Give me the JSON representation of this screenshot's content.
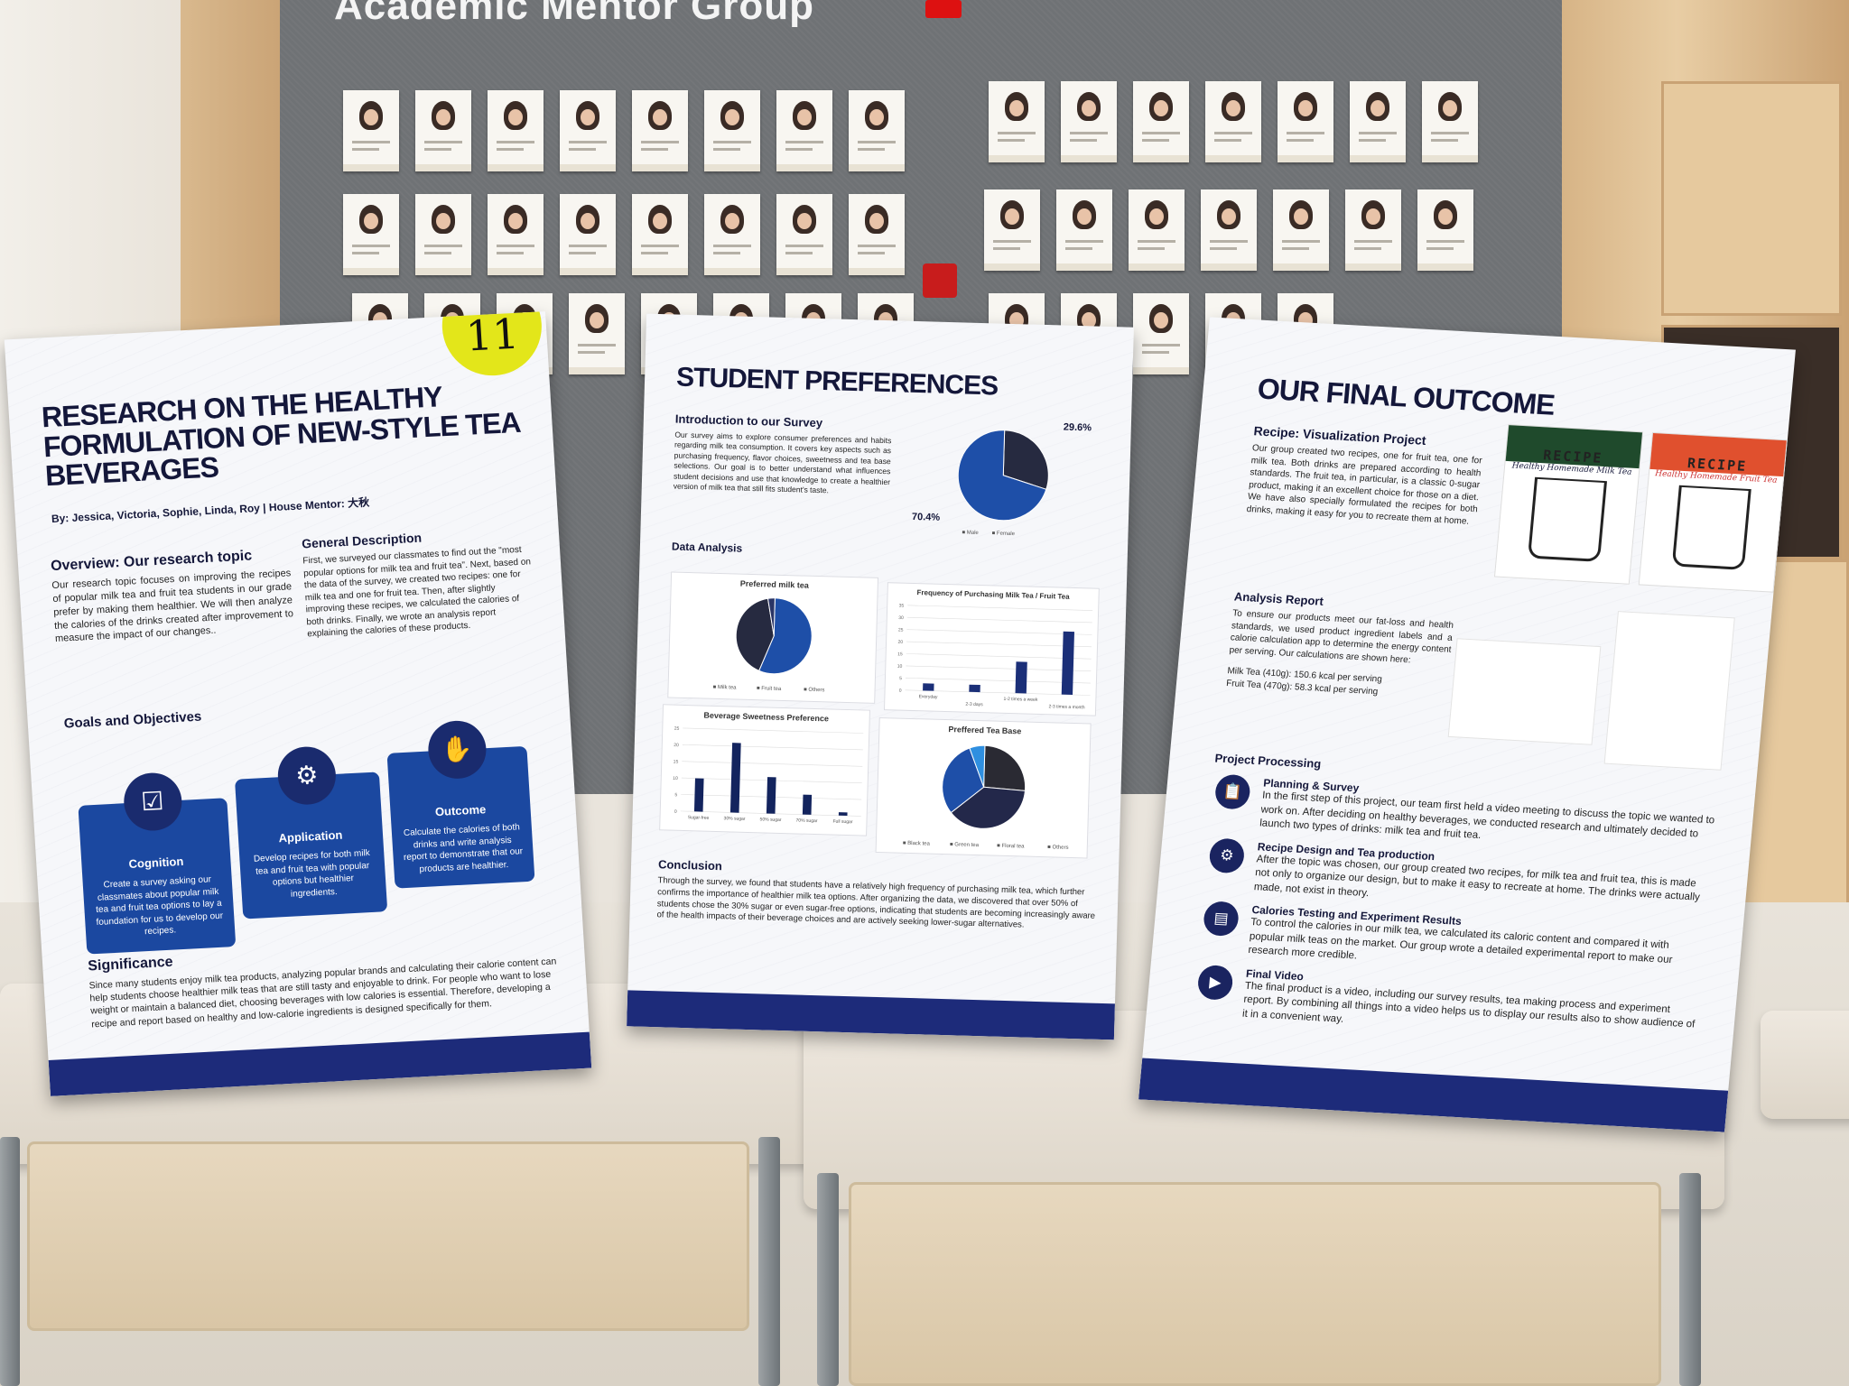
{
  "background": {
    "board_title": "Academic Mentor Group",
    "number_sticker": "11"
  },
  "poster_left": {
    "title": "RESEARCH ON THE HEALTHY FORMULATION OF NEW-STYLE TEA BEVERAGES",
    "byline": "By: Jessica, Victoria, Sophie, Linda, Roy | House Mentor: 大秋",
    "overview_heading": "Overview: Our research topic",
    "overview_text": "Our research topic focuses on improving the recipes of popular milk tea and fruit tea students in our grade prefer by making them healthier. We will then analyze the calories of the drinks created after improvement to measure the impact of our changes..",
    "general_heading": "General Description",
    "general_text": "First, we surveyed our classmates to find out the \"most popular options for milk tea and fruit tea\". Next, based on the data of the survey, we created two recipes: one for milk tea and one for fruit tea. Then, after slightly improving these recipes, we calculated the calories of both drinks. Finally, we wrote an analysis report explaining the calories of these products.",
    "goals_heading": "Goals and Objectives",
    "goals": [
      {
        "icon": "survey-checklist-icon",
        "title": "Cognition",
        "text": "Create a survey asking our classmates about popular milk tea and fruit tea options to lay a foundation for us to develop our recipes."
      },
      {
        "icon": "presentation-icon",
        "title": "Application",
        "text": "Develop recipes for both milk tea and fruit tea with popular options but healthier ingredients."
      },
      {
        "icon": "hand-chart-icon",
        "title": "Outcome",
        "text": "Calculate the calories of both drinks and write analysis report to demonstrate that our products are healthier."
      }
    ],
    "significance_heading": "Significance",
    "significance_text": "Since many students enjoy milk tea products, analyzing popular brands and calculating their calorie content can help students choose healthier milk teas that are still tasty and enjoyable to drink. For people who want to lose weight or maintain a balanced diet, choosing beverages with low calories is essential. Therefore, developing a recipe and report based on healthy and low-calorie ingredients is designed specifically for them."
  },
  "poster_middle": {
    "title": "STUDENT PREFERENCES",
    "intro_heading": "Introduction to our Survey",
    "intro_text": "Our survey aims to explore consumer preferences and habits regarding milk tea consumption. It covers key aspects such as purchasing frequency, flavor choices, sweetness and tea base selections. Our goal is to better understand what influences student decisions and use that knowledge to create a healthier version of milk tea that still fits student's taste.",
    "data_heading": "Data Analysis",
    "conclusion_heading": "Conclusion",
    "conclusion_text": "Through the survey, we found that students have a relatively high frequency of purchasing milk tea, which further confirms the importance of healthier milk tea options. After organizing the data, we discovered that over 50% of students chose the 30% sugar or even sugar-free options, indicating that students are becoming increasingly aware of the health impacts of their beverage choices and are actively seeking lower-sugar alternatives."
  },
  "chart_data": [
    {
      "type": "pie",
      "title": "",
      "categories": [
        "Male",
        "Female"
      ],
      "values": [
        29.6,
        70.4
      ],
      "labels": [
        "29.6%",
        "70.4%"
      ],
      "colors": [
        "#262a40",
        "#1e4fa8"
      ],
      "legend": "bottom"
    },
    {
      "type": "pie",
      "title": "Preferred milk tea",
      "categories": [
        "Milk tea",
        "Fruit tea",
        "Others"
      ],
      "values": [
        56,
        41,
        3
      ],
      "colors": [
        "#1e4fa8",
        "#262a40",
        "#2a3566"
      ],
      "legend": "bottom"
    },
    {
      "type": "bar",
      "title": "Frequency of Purchasing Milk Tea / Fruit Tea",
      "categories": [
        "Everyday",
        "2-3 days",
        "1-2 times a week",
        "2-3 times a month"
      ],
      "values": [
        3,
        3,
        13,
        26
      ],
      "ylim": [
        0,
        35
      ],
      "yticks": [
        0,
        5,
        10,
        15,
        20,
        25,
        30,
        35
      ],
      "grid": true,
      "color": "#1b2f78"
    },
    {
      "type": "bar",
      "title": "Beverage Sweetness Preference",
      "categories": [
        "Sugar-free",
        "30% sugar",
        "50% sugar",
        "70% sugar",
        "Full sugar"
      ],
      "values": [
        10,
        21,
        11,
        6,
        1
      ],
      "ylim": [
        0,
        25
      ],
      "yticks": [
        0,
        5,
        10,
        15,
        20,
        25
      ],
      "grid": true,
      "color": "#13245e"
    },
    {
      "type": "pie",
      "title": "Preffered Tea Base",
      "categories": [
        "Black tea",
        "Green tea",
        "Floral tea",
        "Others"
      ],
      "values": [
        26,
        38,
        30,
        6
      ],
      "colors": [
        "#2a2a33",
        "#23284a",
        "#1e4fa8",
        "#2f8fe0"
      ],
      "legend": "bottom"
    }
  ],
  "poster_right": {
    "title": "OUR FINAL OUTCOME",
    "recipe_heading": "Recipe: Visualization Project",
    "recipe_text": "Our group created two recipes, one for fruit tea, one for milk tea. Both drinks are prepared according to health standards. The fruit tea, in particular, is a classic 0-sugar product, making it an excellent choice for those on a diet. We have also specially formulated the recipes for both drinks, making it easy for you to recreate them at home.",
    "recipe_cards": [
      {
        "title": "RECIPE",
        "subtitle": "Healthy Homemade Milk Tea",
        "color": "#1f4a2c"
      },
      {
        "title": "RECIPE",
        "subtitle": "Healthy Homemade Fruit Tea",
        "color": "#e0502e"
      }
    ],
    "analysis_heading": "Analysis Report",
    "analysis_text": "To ensure our products meet our fat-loss and health standards, we used product ingredient labels and a calorie calculation app to determine the energy content per serving. Our calculations are shown here:",
    "milk_tea_result": "Milk Tea (410g): 150.6 kcal per serving",
    "fruit_tea_result": "Fruit Tea (470g): 58.3 kcal per serving",
    "processing_heading": "Project Processing",
    "steps": [
      {
        "icon": "clipboard-icon",
        "title": "Planning & Survey",
        "text": "In the first step of this project, our team first held a video meeting to discuss the topic we wanted to work on. After deciding on healthy beverages, we conducted research and ultimately decided to launch two types of drinks: milk tea and fruit tea."
      },
      {
        "icon": "gears-icon",
        "title": "Recipe Design and Tea production",
        "text": "After the topic was chosen, our group created two recipes, for milk tea and fruit tea, this is made not only to organize our design, but to make it easy to recreate at home. The drinks were actually made, not exist in theory."
      },
      {
        "icon": "report-icon",
        "title": "Calories Testing and Experiment Results",
        "text": "To control the calories in our milk tea, we calculated its caloric content and compared it with popular milk teas on the market. Our group wrote a detailed experimental report to make our research more credible."
      },
      {
        "icon": "video-play-icon",
        "title": "Final Video",
        "text": "The final product is a video, including our survey results, tea making process and experiment report. By combining all things into a video helps us to display our results also to show audience of it in a convenient way."
      }
    ]
  }
}
